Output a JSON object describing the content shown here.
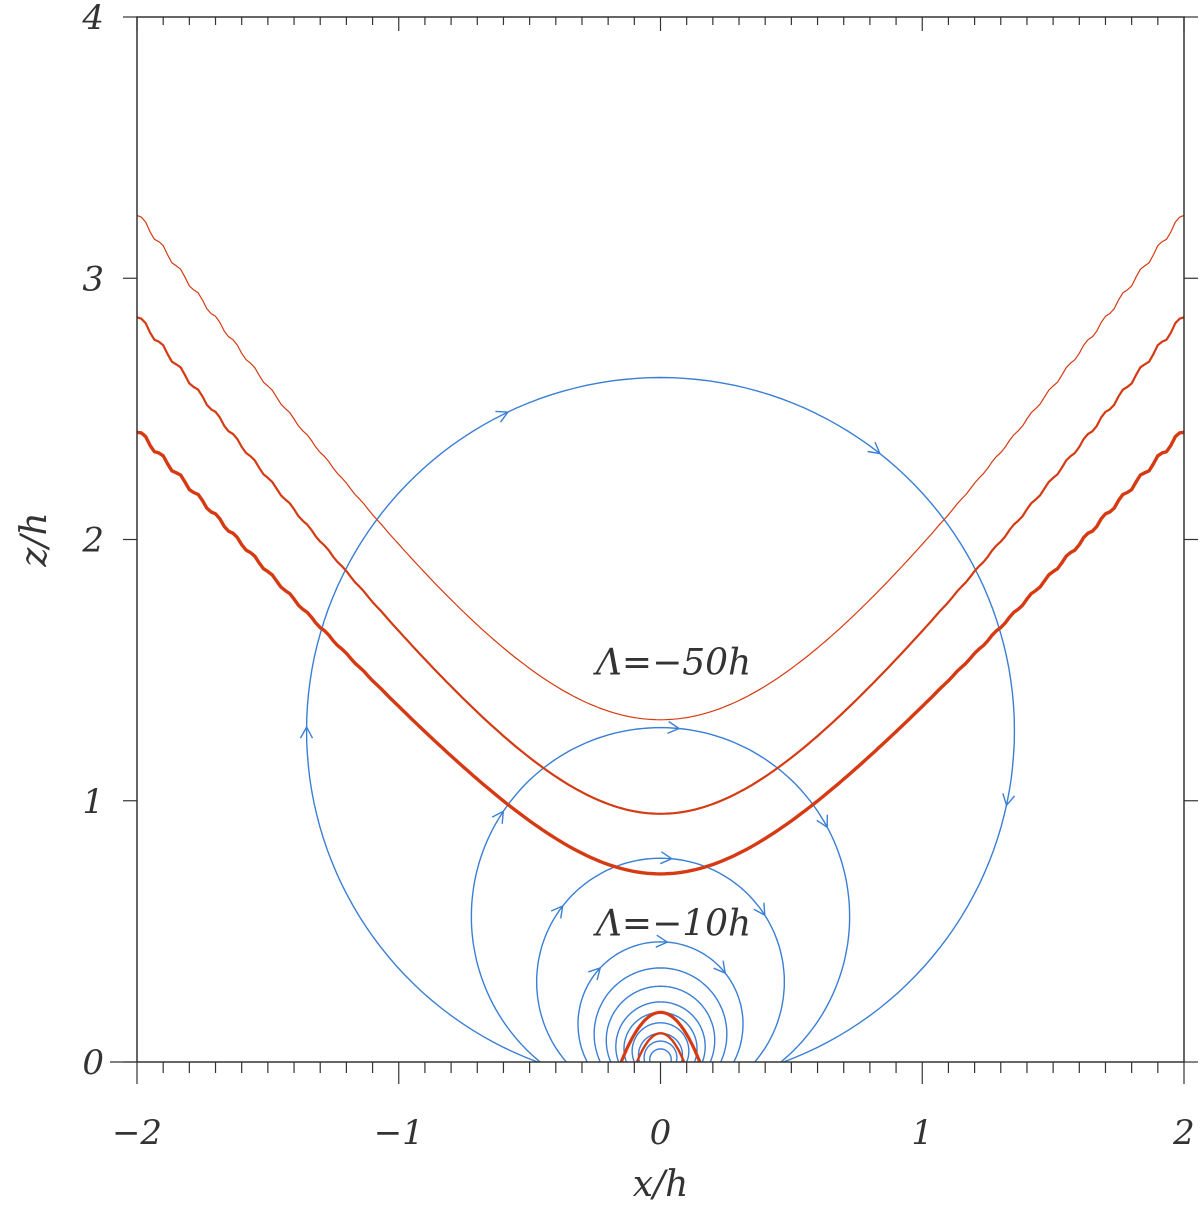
{
  "chart_data": {
    "type": "line",
    "title": "",
    "xlabel": "x/h",
    "ylabel": "z/h",
    "xlim": [
      -2,
      2
    ],
    "ylim": [
      0,
      4
    ],
    "x_ticks": [
      "−2",
      "−1",
      "0",
      "1",
      "2"
    ],
    "y_ticks": [
      "0",
      "1",
      "2",
      "3",
      "4"
    ],
    "grid": false,
    "legend": "none",
    "colors": {
      "field_lines": "#3a7fd5",
      "contours": "#d63a12",
      "axes": "#333333"
    },
    "annotations": [
      {
        "text": "Λ=−50h",
        "x": 0.05,
        "z": 1.53
      },
      {
        "text": "Λ=−10h",
        "x": 0.05,
        "z": 0.53
      }
    ],
    "contour_series": [
      {
        "vertex_z": 1.31,
        "edge_z": 3.25
      },
      {
        "vertex_z": 0.95,
        "edge_z": 2.86
      },
      {
        "vertex_z": 0.72,
        "edge_z": 2.42
      },
      {
        "vertex_z": 0.19,
        "half_width": 0.15
      },
      {
        "vertex_z": 0.11,
        "half_width": 0.09
      }
    ],
    "field_lines": {
      "footpoint_pairs_x": [
        [
          -0.47,
          0.47
        ],
        [
          -0.46,
          0.46
        ],
        [
          -0.36,
          0.36
        ],
        [
          -0.28,
          0.28
        ],
        [
          -0.23,
          0.23
        ],
        [
          -0.19,
          0.19
        ],
        [
          -0.16,
          0.16
        ],
        [
          -0.13,
          0.13
        ],
        [
          -0.1,
          0.1
        ],
        [
          -0.08,
          0.08
        ],
        [
          -0.06,
          0.06
        ],
        [
          -0.04,
          0.04
        ]
      ],
      "apex_z": [
        2.62,
        1.28,
        0.78,
        0.46,
        0.36,
        0.29,
        0.23,
        0.19,
        0.15,
        0.11,
        0.08,
        0.05
      ]
    }
  }
}
